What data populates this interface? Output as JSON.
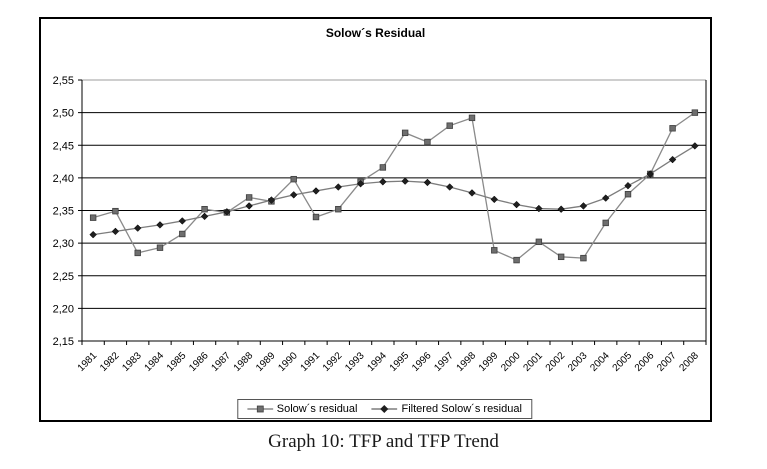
{
  "figure": {
    "caption": "Graph 10: TFP and TFP Trend"
  },
  "chart_data": {
    "type": "line",
    "title": "Solow´s Residual",
    "categories": [
      "1981",
      "1982",
      "1983",
      "1984",
      "1985",
      "1986",
      "1987",
      "1988",
      "1989",
      "1990",
      "1991",
      "1992",
      "1993",
      "1994",
      "1995",
      "1996",
      "1997",
      "1998",
      "1999",
      "2000",
      "2001",
      "2002",
      "2003",
      "2004",
      "2005",
      "2006",
      "2007",
      "2008"
    ],
    "series": [
      {
        "name": "Solow´s residual",
        "marker": "square",
        "line_color": "#8a8a8a",
        "marker_color": "#6e6e6e",
        "marker_edge": "#3f3f3f",
        "values": [
          2.339,
          2.349,
          2.285,
          2.293,
          2.314,
          2.352,
          2.347,
          2.37,
          2.364,
          2.398,
          2.34,
          2.352,
          2.394,
          2.416,
          2.469,
          2.455,
          2.48,
          2.492,
          2.289,
          2.274,
          2.302,
          2.279,
          2.277,
          2.331,
          2.375,
          2.406,
          2.476,
          2.5
        ]
      },
      {
        "name": "Filtered Solow´s residual",
        "marker": "diamond",
        "line_color": "#7d7d7d",
        "marker_color": "#1f1f1f",
        "marker_edge": "#000000",
        "values": [
          2.313,
          2.318,
          2.323,
          2.328,
          2.334,
          2.341,
          2.348,
          2.357,
          2.366,
          2.374,
          2.38,
          2.386,
          2.391,
          2.394,
          2.395,
          2.393,
          2.386,
          2.377,
          2.367,
          2.359,
          2.353,
          2.352,
          2.357,
          2.369,
          2.388,
          2.406,
          2.428,
          2.449
        ]
      }
    ],
    "ylim": [
      2.15,
      2.55
    ],
    "ytick_step": 0.05,
    "ytick_labels": [
      "2,55",
      "2,50",
      "2,45",
      "2,40",
      "2,35",
      "2,30",
      "2,25",
      "2,20",
      "2,15"
    ],
    "decimal_separator": ",",
    "grid": "horizontal",
    "gridline_color": "#000000",
    "top_gridline_color": "#9c9c9c",
    "legend_position": "bottom-center",
    "x_label_rotation": -45
  }
}
